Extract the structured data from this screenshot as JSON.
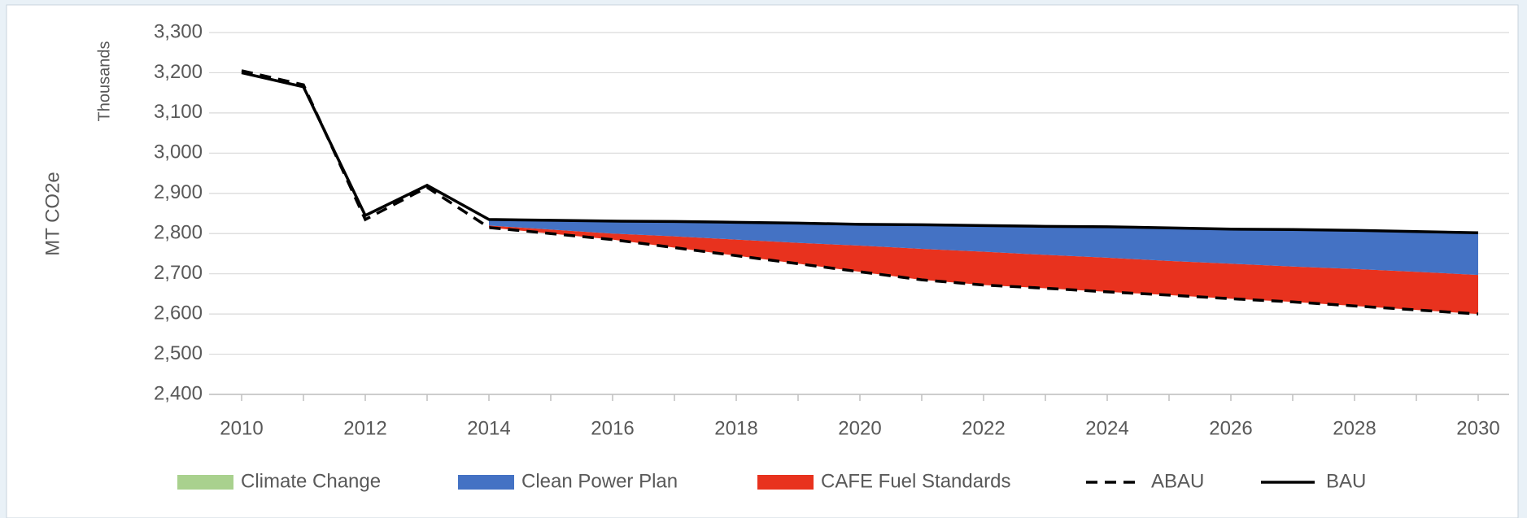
{
  "chart_data": {
    "type": "area",
    "y_label": "MT CO2e",
    "y_unit_label": "Thousands",
    "x": [
      2010,
      2011,
      2012,
      2013,
      2014,
      2015,
      2016,
      2017,
      2018,
      2019,
      2020,
      2021,
      2022,
      2023,
      2024,
      2025,
      2026,
      2027,
      2028,
      2029,
      2030
    ],
    "xlim": [
      2010,
      2030
    ],
    "xticks": [
      2010,
      2012,
      2014,
      2016,
      2018,
      2020,
      2022,
      2024,
      2026,
      2028,
      2030
    ],
    "ylim": [
      2400,
      3300
    ],
    "yticks": [
      {
        "value": 2400,
        "label": "2,400"
      },
      {
        "value": 2500,
        "label": "2,500"
      },
      {
        "value": 2600,
        "label": "2,600"
      },
      {
        "value": 2700,
        "label": "2,700"
      },
      {
        "value": 2800,
        "label": "2,800"
      },
      {
        "value": 2900,
        "label": "2,900"
      },
      {
        "value": 3000,
        "label": "3,000"
      },
      {
        "value": 3100,
        "label": "3,100"
      },
      {
        "value": 3200,
        "label": "3,200"
      },
      {
        "value": 3300,
        "label": "3,300"
      }
    ],
    "grid": true,
    "legend": "bottom",
    "series": [
      {
        "name": "Climate Change",
        "kind": "area",
        "color": "#a9d18e",
        "values": [
          null,
          null,
          null,
          null,
          0,
          0,
          0,
          0,
          0,
          0,
          0,
          0,
          0,
          0,
          0,
          0,
          0,
          0,
          0,
          0,
          0
        ]
      },
      {
        "name": "Clean Power Plan",
        "kind": "area",
        "color": "#4472c4",
        "values": [
          null,
          null,
          null,
          null,
          15,
          23,
          31,
          37,
          43,
          49,
          53,
          60,
          65,
          71,
          77,
          82,
          86,
          92,
          96,
          100,
          105
        ]
      },
      {
        "name": "CAFE Fuel Standards",
        "kind": "area",
        "color": "#e8321e",
        "values": [
          null,
          null,
          null,
          null,
          5,
          10,
          15,
          28,
          40,
          52,
          65,
          77,
          83,
          83,
          85,
          85,
          87,
          88,
          92,
          95,
          97
        ]
      },
      {
        "name": "ABAU",
        "kind": "line",
        "dash": true,
        "color": "#000000",
        "values": [
          3205,
          3170,
          2835,
          2915,
          2815,
          2800,
          2785,
          2765,
          2745,
          2725,
          2705,
          2685,
          2672,
          2664,
          2655,
          2647,
          2638,
          2630,
          2620,
          2610,
          2600
        ]
      },
      {
        "name": "BAU",
        "kind": "line",
        "dash": false,
        "color": "#000000",
        "values": [
          3200,
          3165,
          2845,
          2920,
          2835,
          2833,
          2831,
          2830,
          2828,
          2826,
          2823,
          2822,
          2820,
          2818,
          2817,
          2814,
          2811,
          2810,
          2808,
          2805,
          2802
        ]
      }
    ]
  }
}
